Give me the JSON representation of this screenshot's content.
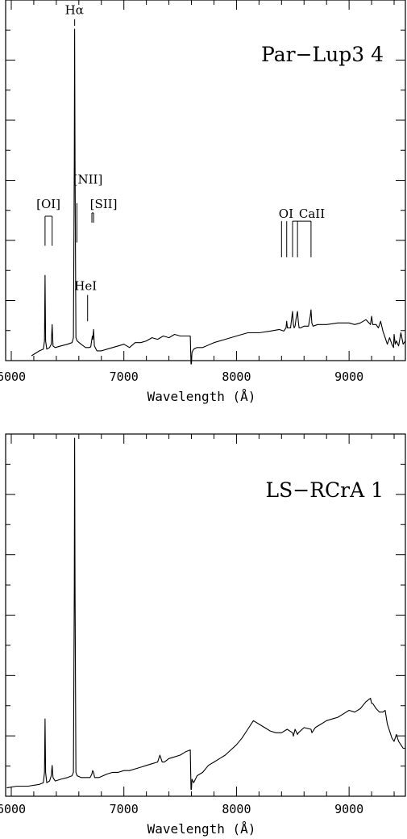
{
  "chart_data": [
    {
      "type": "line",
      "title": "Par−Lup3 4",
      "xlabel": "Wavelength (Å)",
      "ylabel": "",
      "xlim": [
        5950,
        9500
      ],
      "ylim": [
        0,
        1.06
      ],
      "x_ticks": [
        6000,
        7000,
        8000,
        9000
      ],
      "x_tick_labels": [
        "6000",
        "7000",
        "8000",
        "9000"
      ],
      "y_tick_labels_shown": false,
      "grid": false,
      "series": [
        {
          "x": [
            6180,
            6250,
            6285,
            6295,
            6300,
            6305,
            6315,
            6340,
            6355,
            6363,
            6371,
            6390,
            6440,
            6500,
            6540,
            6552,
            6560,
            6563,
            6566,
            6574,
            6585,
            6620,
            6660,
            6690,
            6706,
            6716,
            6720,
            6724,
            6731,
            6738,
            6760,
            6800,
            6850,
            6900,
            6950,
            7000,
            7050,
            7100,
            7150,
            7200,
            7250,
            7300,
            7350,
            7400,
            7450,
            7500,
            7550,
            7590,
            7596,
            7600,
            7605,
            7620,
            7650,
            7700,
            7800,
            7900,
            8000,
            8100,
            8200,
            8300,
            8380,
            8420,
            8440,
            8446,
            8452,
            8460,
            8480,
            8498,
            8505,
            8512,
            8520,
            8530,
            8542,
            8549,
            8556,
            8570,
            8600,
            8640,
            8655,
            8662,
            8669,
            8680,
            8720,
            8800,
            8900,
            9000,
            9050,
            9100,
            9150,
            9190,
            9200,
            9210,
            9240,
            9260,
            9280,
            9300,
            9320,
            9340,
            9360,
            9380,
            9395,
            9400,
            9410,
            9420,
            9440,
            9460,
            9480,
            9500
          ],
          "y": [
            0.005,
            0.02,
            0.025,
            0.05,
            0.25,
            0.05,
            0.025,
            0.03,
            0.04,
            0.1,
            0.035,
            0.03,
            0.035,
            0.04,
            0.045,
            0.06,
            0.6,
            1.0,
            0.6,
            0.06,
            0.05,
            0.04,
            0.03,
            0.03,
            0.032,
            0.055,
            0.065,
            0.055,
            0.085,
            0.035,
            0.02,
            0.02,
            0.025,
            0.03,
            0.035,
            0.04,
            0.03,
            0.045,
            0.045,
            0.05,
            0.06,
            0.055,
            0.065,
            0.06,
            0.07,
            0.065,
            0.065,
            0.065,
            -0.02,
            -0.02,
            0.015,
            0.025,
            0.03,
            0.03,
            0.045,
            0.055,
            0.065,
            0.075,
            0.075,
            0.08,
            0.085,
            0.08,
            0.09,
            0.11,
            0.09,
            0.09,
            0.09,
            0.14,
            0.1,
            0.09,
            0.095,
            0.12,
            0.14,
            0.11,
            0.09,
            0.09,
            0.095,
            0.095,
            0.125,
            0.145,
            0.105,
            0.095,
            0.1,
            0.1,
            0.105,
            0.105,
            0.1,
            0.105,
            0.115,
            0.1,
            0.125,
            0.1,
            0.1,
            0.09,
            0.11,
            0.08,
            0.06,
            0.04,
            0.06,
            0.04,
            0.03,
            0.07,
            0.04,
            0.05,
            0.035,
            0.075,
            0.04,
            0.05
          ]
        }
      ],
      "annotations": [
        {
          "label": "Hα",
          "marks": [
            6563
          ],
          "ref_y": 1.03,
          "label_y": 1.045,
          "label_x": 6560
        },
        {
          "label": "[NII]",
          "marks": [
            6583
          ],
          "ref_y": 0.47,
          "label_y": 0.53,
          "label_x": 6680
        },
        {
          "label": "[SII]",
          "marks": [
            6716,
            6731
          ],
          "ref_y": 0.41,
          "bracket_y": 0.44,
          "label_y": 0.455,
          "label_x": 6820
        },
        {
          "label": "[OI]",
          "marks": [
            6300,
            6363
          ],
          "ref_y": 0.34,
          "bracket_y": 0.43,
          "label_y": 0.455,
          "label_x": 6330
        },
        {
          "label": "HeI",
          "marks": [
            6678
          ],
          "ref_y": 0.11,
          "bracket_y": 0.19,
          "label_y": 0.205,
          "label_x": 6660
        },
        {
          "label": "OI",
          "marks": [
            8446
          ],
          "ref_y": 0.305,
          "bracket_y": 0.415,
          "label_y": 0.425,
          "label_x": 8440
        },
        {
          "label": "CaII",
          "marks": [
            8498,
            8542,
            8662
          ],
          "ref_y": 0.305,
          "bracket_y": 0.415,
          "label_y": 0.425,
          "label_x": 8670
        },
        {
          "label": "",
          "marks": [
            8400
          ],
          "ref_y": 0.305,
          "bracket_y": 0.415,
          "label_y": 0.425,
          "label_x": 8400
        }
      ]
    },
    {
      "type": "line",
      "title": "LS−RCrA 1",
      "xlabel": "Wavelength (Å)",
      "ylabel": "",
      "xlim": [
        5950,
        9500
      ],
      "ylim": [
        0,
        1.06
      ],
      "x_ticks": [
        6000,
        7000,
        8000,
        9000
      ],
      "x_tick_labels": [
        "6000",
        "7000",
        "8000",
        "9000"
      ],
      "y_tick_labels_shown": false,
      "grid": false,
      "series": [
        {
          "x": [
            5960,
            6050,
            6150,
            6250,
            6285,
            6295,
            6300,
            6305,
            6315,
            6340,
            6355,
            6363,
            6371,
            6390,
            6440,
            6500,
            6540,
            6552,
            6560,
            6563,
            6566,
            6574,
            6585,
            6620,
            6660,
            6700,
            6716,
            6722,
            6731,
            6740,
            6780,
            6850,
            6900,
            6950,
            7000,
            7050,
            7100,
            7150,
            7200,
            7250,
            7300,
            7320,
            7330,
            7340,
            7360,
            7400,
            7450,
            7500,
            7550,
            7590,
            7596,
            7600,
            7605,
            7620,
            7650,
            7700,
            7750,
            7800,
            7850,
            7900,
            7950,
            8000,
            8050,
            8100,
            8150,
            8200,
            8250,
            8300,
            8350,
            8400,
            8450,
            8498,
            8505,
            8520,
            8542,
            8550,
            8600,
            8662,
            8670,
            8700,
            8750,
            8800,
            8850,
            8900,
            8950,
            9000,
            9050,
            9100,
            9150,
            9190,
            9200,
            9210,
            9240,
            9270,
            9300,
            9320,
            9340,
            9360,
            9380,
            9400,
            9420,
            9440,
            9460,
            9480,
            9500
          ],
          "y": [
            0.015,
            0.02,
            0.02,
            0.025,
            0.03,
            0.06,
            0.215,
            0.06,
            0.03,
            0.035,
            0.05,
            0.08,
            0.045,
            0.035,
            0.04,
            0.045,
            0.05,
            0.06,
            0.6,
            1.03,
            0.6,
            0.06,
            0.05,
            0.045,
            0.045,
            0.045,
            0.055,
            0.065,
            0.06,
            0.045,
            0.045,
            0.055,
            0.06,
            0.06,
            0.065,
            0.065,
            0.07,
            0.075,
            0.08,
            0.085,
            0.09,
            0.11,
            0.1,
            0.09,
            0.09,
            0.1,
            0.105,
            0.11,
            0.12,
            0.125,
            0.01,
            0.01,
            0.04,
            0.03,
            0.05,
            0.06,
            0.08,
            0.09,
            0.1,
            0.11,
            0.125,
            0.14,
            0.16,
            0.185,
            0.21,
            0.2,
            0.19,
            0.18,
            0.175,
            0.175,
            0.185,
            0.175,
            0.165,
            0.185,
            0.17,
            0.175,
            0.19,
            0.185,
            0.175,
            0.19,
            0.2,
            0.21,
            0.215,
            0.22,
            0.23,
            0.24,
            0.235,
            0.245,
            0.265,
            0.275,
            0.26,
            0.26,
            0.245,
            0.235,
            0.235,
            0.24,
            0.2,
            0.18,
            0.16,
            0.15,
            0.17,
            0.15,
            0.14,
            0.13,
            0.13
          ]
        }
      ],
      "annotations": []
    }
  ]
}
